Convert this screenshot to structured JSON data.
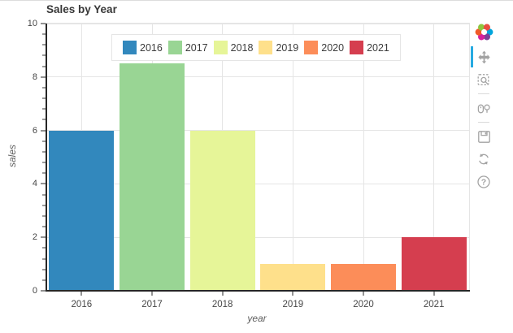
{
  "title": "Sales by Year",
  "chart_data": {
    "type": "bar",
    "title": "Sales by Year",
    "categories": [
      "2016",
      "2017",
      "2018",
      "2019",
      "2020",
      "2021"
    ],
    "values": [
      6,
      8.5,
      6,
      1,
      1,
      2
    ],
    "bar_colors": [
      "#3288bd",
      "#99d594",
      "#e6f598",
      "#fee08b",
      "#fc8d59",
      "#d53e4f"
    ],
    "xlabel": "year",
    "ylabel": "sales",
    "ylim": [
      0,
      10
    ],
    "yticks": [
      0,
      2,
      4,
      6,
      8,
      10
    ],
    "minor_tick_step": 0.4,
    "bar_width_fraction": 0.92,
    "grid": true,
    "legend": {
      "position": "top_center",
      "entries": [
        "2016",
        "2017",
        "2018",
        "2019",
        "2020",
        "2021"
      ]
    }
  },
  "toolbar": {
    "orientation": "vertical",
    "active_tool": "pan",
    "tools": [
      "bokeh-logo",
      "pan",
      "box-zoom",
      "wheel-zoom",
      "save",
      "reset",
      "help"
    ]
  },
  "colors": {
    "active_tool_indicator": "#26aae1",
    "grid": "#e5e5e5",
    "axis_line": "#262626",
    "tick_label": "#474747",
    "axis_label": "#5f5f5f",
    "title": "#383838",
    "legend_border": "#e5e5e5",
    "legend_background": "#ffffff"
  }
}
